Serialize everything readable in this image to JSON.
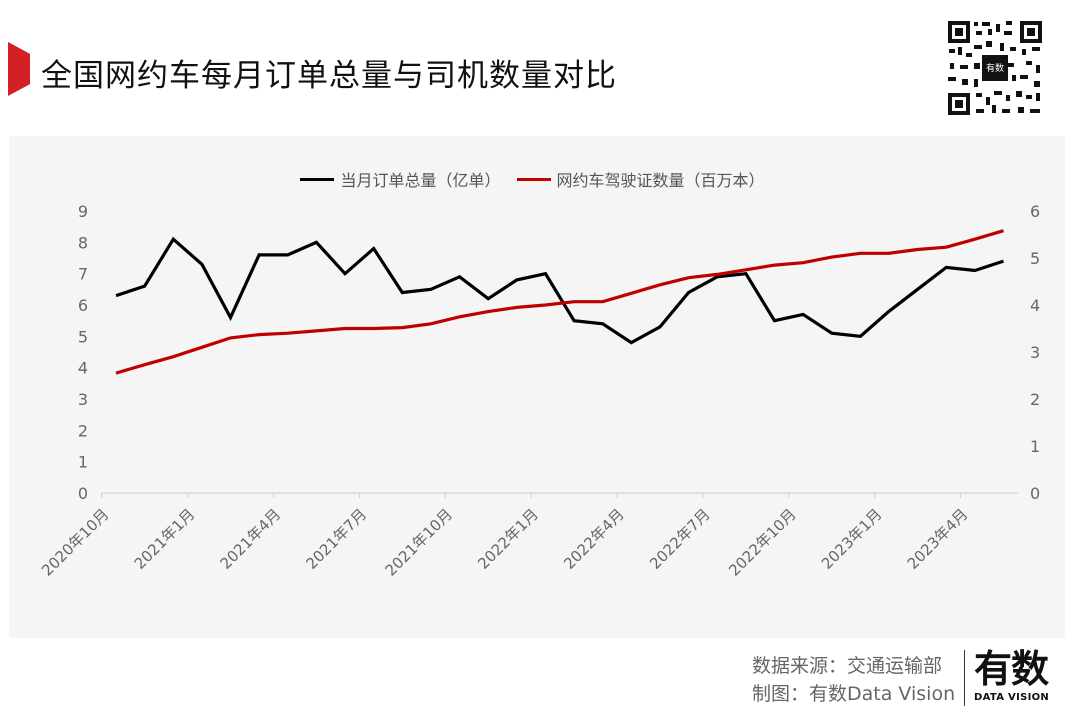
{
  "header": {
    "title": "全国网约车每月订单总量与司机数量对比",
    "accent_color": "#d31f26",
    "qr_code_label": "有数"
  },
  "legend": {
    "items": [
      {
        "label": "当月订单总量（亿单）",
        "color": "#000000"
      },
      {
        "label": "网约车驾驶证数量（百万本）",
        "color": "#c00000"
      }
    ]
  },
  "footer": {
    "source": "数据来源：交通运输部",
    "credit": "制图：有数Data Vision",
    "logo_main": "有数",
    "logo_sub": "DATA VISION"
  },
  "chart_data": {
    "type": "line",
    "title": "全国网约车每月订单总量与司机数量对比",
    "x": [
      "2020-10",
      "2020-11",
      "2020-12",
      "2021-01",
      "2021-02",
      "2021-03",
      "2021-04",
      "2021-05",
      "2021-06",
      "2021-07",
      "2021-08",
      "2021-09",
      "2021-10",
      "2021-11",
      "2021-12",
      "2022-01",
      "2022-02",
      "2022-03",
      "2022-04",
      "2022-05",
      "2022-06",
      "2022-07",
      "2022-08",
      "2022-09",
      "2022-10",
      "2022-11",
      "2022-12",
      "2023-01",
      "2023-02",
      "2023-03",
      "2023-04",
      "2023-05"
    ],
    "tick_labels": [
      "2020年10月",
      "2021年1月",
      "2021年4月",
      "2021年7月",
      "2021年10月",
      "2022年1月",
      "2022年4月",
      "2022年7月",
      "2022年10月",
      "2023年1月",
      "2023年4月"
    ],
    "series": [
      {
        "name": "当月订单总量（亿单）",
        "axis": "left",
        "color": "#000000",
        "values": [
          6.3,
          6.6,
          8.1,
          7.3,
          5.6,
          7.6,
          7.6,
          8.0,
          7.0,
          7.8,
          6.4,
          6.5,
          6.9,
          6.2,
          6.8,
          7.0,
          5.5,
          5.4,
          4.8,
          5.3,
          6.4,
          6.9,
          7.0,
          5.5,
          5.7,
          5.1,
          5.0,
          5.8,
          6.5,
          7.2,
          7.1,
          7.4
        ]
      },
      {
        "name": "网约车驾驶证数量（百万本）",
        "axis": "right",
        "color": "#c00000",
        "values": [
          2.55,
          2.73,
          2.9,
          3.1,
          3.3,
          3.37,
          3.4,
          3.45,
          3.5,
          3.5,
          3.52,
          3.6,
          3.75,
          3.86,
          3.95,
          4.0,
          4.07,
          4.07,
          4.25,
          4.43,
          4.58,
          4.65,
          4.75,
          4.85,
          4.9,
          5.02,
          5.1,
          5.1,
          5.18,
          5.23,
          5.4,
          5.58
        ]
      }
    ],
    "y_left": {
      "label": "",
      "ylim": [
        0,
        9
      ],
      "ticks": [
        0,
        1,
        2,
        3,
        4,
        5,
        6,
        7,
        8,
        9
      ]
    },
    "y_right": {
      "label": "",
      "ylim": [
        0,
        6
      ],
      "ticks": [
        0,
        1,
        2,
        3,
        4,
        5,
        6
      ]
    },
    "xlabel": "",
    "grid": false,
    "legend_position": "top"
  }
}
